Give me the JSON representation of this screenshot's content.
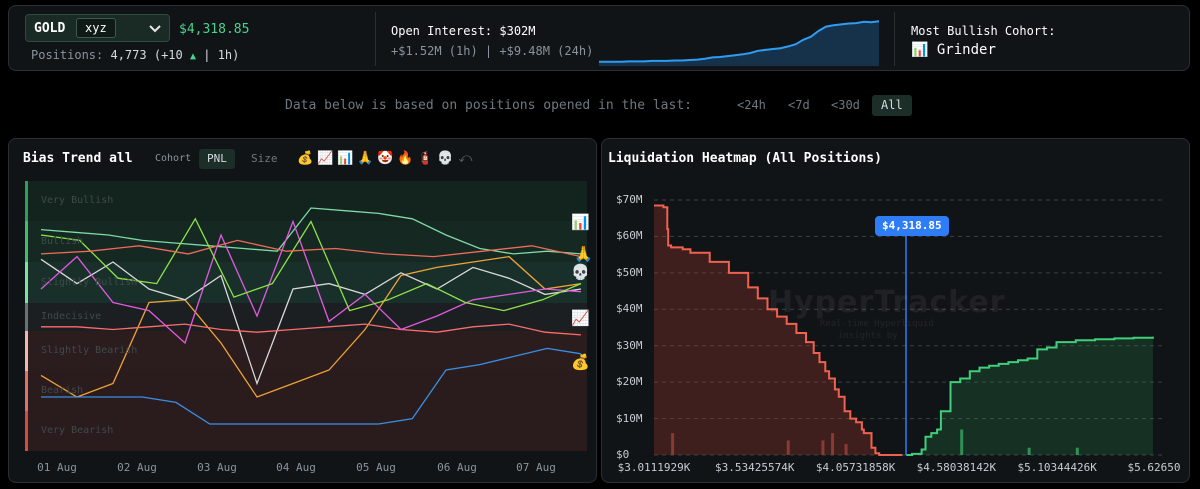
{
  "header": {
    "symbol": "GOLD",
    "dex": "xyz",
    "price": "$4,318.85",
    "positions_label": "Positions:",
    "positions_value": "4,773",
    "positions_change_pre": "(+10",
    "positions_change_post": "| 1h)",
    "open_interest_title": "Open Interest: $302M",
    "open_interest_sub": "+$1.52M (1h) | +$9.48M (24h)",
    "open_interest_spark": [
      0.05,
      0.05,
      0.05,
      0.05,
      0.06,
      0.06,
      0.06,
      0.07,
      0.07,
      0.07,
      0.08,
      0.08,
      0.09,
      0.1,
      0.12,
      0.15,
      0.16,
      0.18,
      0.2,
      0.22,
      0.25,
      0.3,
      0.32,
      0.34,
      0.36,
      0.4,
      0.45,
      0.55,
      0.62,
      0.75,
      0.85,
      0.88,
      0.9,
      0.92,
      0.93,
      0.96,
      0.95,
      0.97
    ],
    "most_bullish_title": "Most Bullish Cohort:",
    "most_bullish_icon": "📊",
    "most_bullish_value": "Grinder",
    "accent_green": "#4ad38a",
    "accent_blue": "#2e7cf6"
  },
  "timeframe": {
    "label": "Data below is based on positions opened in the last:",
    "options": [
      "<24h",
      "<7d",
      "<30d",
      "All"
    ],
    "selected": "All"
  },
  "bias_trend": {
    "title": "Bias Trend all",
    "cohort_label": "Cohort",
    "mode_pnl": "PNL",
    "mode_size": "Size",
    "mode_selected": "PNL",
    "cohort_icons": [
      "💰",
      "📈",
      "📊",
      "🙏",
      "🤡",
      "🔥",
      "🧯",
      "💀"
    ],
    "reset_icon": "⤺",
    "zones": [
      "Very Bullish",
      "Bullish",
      "Slightly Bullish",
      "Indecisive",
      "Slightly Bearish",
      "Bearish",
      "Very Bearish"
    ],
    "x_labels": [
      "01 Aug",
      "02 Aug",
      "03 Aug",
      "04 Aug",
      "05 Aug",
      "06 Aug",
      "07 Aug"
    ],
    "legend_icons": [
      "📊",
      "🙏",
      "💀",
      "📈",
      "💰"
    ],
    "series": [
      {
        "icon": "📊",
        "color": "#7ed9a6",
        "values": [
          0.82,
          0.81,
          0.8,
          0.78,
          0.77,
          0.76,
          0.75,
          0.74,
          0.9,
          0.89,
          0.88,
          0.86,
          0.8,
          0.75,
          0.73,
          0.74,
          0.73
        ]
      },
      {
        "icon": "🙏",
        "color": "#f0a23a",
        "values": [
          0.28,
          0.2,
          0.25,
          0.55,
          0.56,
          0.4,
          0.2,
          0.25,
          0.3,
          0.45,
          0.65,
          0.68,
          0.7,
          0.72,
          0.6,
          0.62
        ]
      },
      {
        "icon": "💀",
        "color": "#d8d8d8",
        "values": [
          0.71,
          0.62,
          0.7,
          0.6,
          0.56,
          0.65,
          0.25,
          0.6,
          0.62,
          0.58,
          0.66,
          0.6,
          0.68,
          0.64,
          0.58,
          0.6
        ]
      },
      {
        "icon": "📈",
        "color": "#ff6b6b",
        "values": [
          0.46,
          0.46,
          0.45,
          0.46,
          0.47,
          0.45,
          0.44,
          0.45,
          0.46,
          0.47,
          0.45,
          0.44,
          0.46,
          0.47,
          0.44,
          0.43
        ]
      },
      {
        "icon": "🤡",
        "color": "#e05ae0",
        "values": [
          0.6,
          0.72,
          0.55,
          0.52,
          0.4,
          0.8,
          0.5,
          0.85,
          0.48,
          0.58,
          0.45,
          0.5,
          0.56,
          0.58,
          0.6,
          0.59
        ]
      },
      {
        "icon": "🔥",
        "color": "#8fe24a",
        "values": [
          0.8,
          0.78,
          0.64,
          0.62,
          0.86,
          0.57,
          0.62,
          0.85,
          0.52,
          0.56,
          0.62,
          0.55,
          0.52,
          0.56,
          0.62
        ]
      },
      {
        "icon": "🧯",
        "color": "#f06a5a",
        "values": [
          0.73,
          0.74,
          0.76,
          0.73,
          0.78,
          0.74,
          0.75,
          0.73,
          0.72,
          0.74,
          0.76,
          0.72
        ]
      },
      {
        "icon": "💰",
        "color": "#3a8ee6",
        "values": [
          0.2,
          0.2,
          0.2,
          0.2,
          0.18,
          0.1,
          0.1,
          0.1,
          0.1,
          0.1,
          0.1,
          0.12,
          0.3,
          0.32,
          0.35,
          0.38,
          0.36
        ]
      }
    ]
  },
  "liquidation_heatmap": {
    "title": "Liquidation Heatmap (All Positions)",
    "current_price": "$4,318.85",
    "watermark": "HyperTracker",
    "watermark_sub1": "Real-time Hyperliquid",
    "watermark_sub2": "insights by",
    "chart_data": {
      "type": "area",
      "y_ticks": [
        "$70M",
        "$60M",
        "$50M",
        "$40M",
        "$30M",
        "$20M",
        "$10M",
        "$0"
      ],
      "x_ticks": [
        "$3.0111929K",
        "$3.53425574K",
        "$4.05731858K",
        "$4.58038142K",
        "$5.10344426K",
        "$5.62650"
      ],
      "ylim": [
        0,
        70
      ],
      "xlim": [
        3.0111929,
        5.6265
      ],
      "current_price_value": 4.31885,
      "series": [
        {
          "color": "#f0624f",
          "x": [
            3.011,
            3.06,
            3.08,
            3.085,
            3.1,
            3.16,
            3.2,
            3.3,
            3.4,
            3.5,
            3.55,
            3.6,
            3.65,
            3.7,
            3.75,
            3.8,
            3.84,
            3.87,
            3.9,
            3.92,
            3.95,
            3.97,
            4.0,
            4.03,
            4.06,
            4.09,
            4.1,
            4.12,
            4.14,
            4.16,
            4.18,
            4.2,
            4.22,
            4.3
          ],
          "values": [
            68.5,
            68,
            62,
            57.5,
            57,
            56.5,
            55.5,
            53,
            50,
            46,
            43,
            40,
            38,
            36,
            33.5,
            31,
            28,
            25.5,
            23,
            21,
            18,
            16,
            12,
            10,
            9,
            7,
            6,
            6,
            2,
            0.5,
            0,
            0,
            0,
            0
          ]
        },
        {
          "color": "#3ecf7a",
          "x": [
            4.32,
            4.35,
            4.4,
            4.42,
            4.45,
            4.48,
            4.5,
            4.55,
            4.6,
            4.65,
            4.7,
            4.75,
            4.8,
            4.85,
            4.9,
            4.95,
            5.0,
            5.05,
            5.1,
            5.2,
            5.3,
            5.4,
            5.5,
            5.6
          ],
          "values": [
            0,
            0.3,
            1.5,
            5,
            6,
            7,
            12,
            20,
            21,
            23,
            24,
            24.5,
            25,
            25.5,
            26,
            26.5,
            29,
            29.5,
            31,
            31.5,
            31.8,
            32,
            32.2,
            32.5
          ]
        }
      ]
    }
  }
}
